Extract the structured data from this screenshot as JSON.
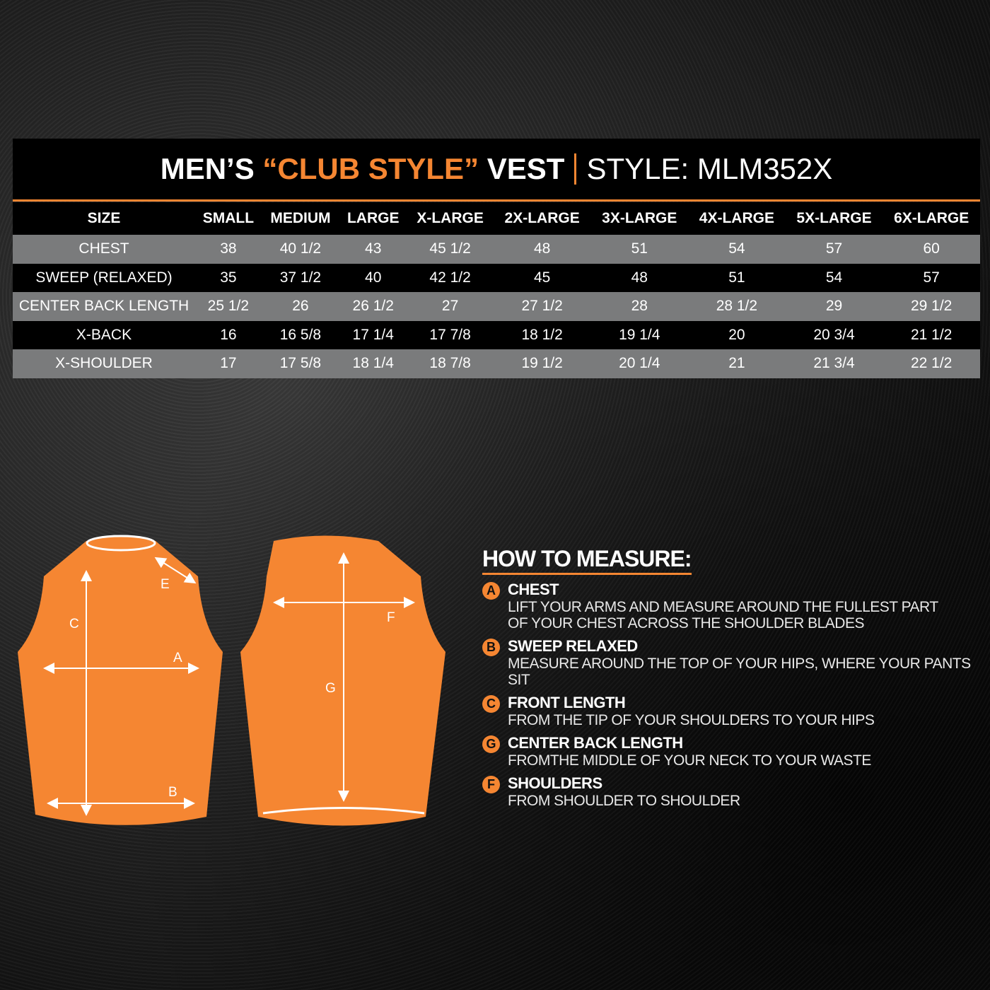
{
  "title": {
    "prefix": "MEN’S",
    "highlight": "“CLUB STYLE”",
    "product": "VEST",
    "style_label": "STYLE:",
    "style_code": "MLM352X"
  },
  "colors": {
    "accent": "#f58632",
    "row_grey": "#7a7b7c"
  },
  "table": {
    "headers": [
      "SIZE",
      "SMALL",
      "MEDIUM",
      "LARGE",
      "X-LARGE",
      "2X-LARGE",
      "3X-LARGE",
      "4X-LARGE",
      "5X-LARGE",
      "6X-LARGE"
    ],
    "rows": [
      [
        "CHEST",
        "38",
        "40 1/2",
        "43",
        "45 1/2",
        "48",
        "51",
        "54",
        "57",
        "60"
      ],
      [
        "SWEEP (RELAXED)",
        "35",
        "37 1/2",
        "40",
        "42 1/2",
        "45",
        "48",
        "51",
        "54",
        "57"
      ],
      [
        "CENTER BACK LENGTH",
        "25 1/2",
        "26",
        "26 1/2",
        "27",
        "27 1/2",
        "28",
        "28 1/2",
        "29",
        "29 1/2"
      ],
      [
        "X-BACK",
        "16",
        "16 5/8",
        "17 1/4",
        "17 7/8",
        "18 1/2",
        "19 1/4",
        "20",
        "20 3/4",
        "21 1/2"
      ],
      [
        "X-SHOULDER",
        "17",
        "17 5/8",
        "18 1/4",
        "18 7/8",
        "19 1/2",
        "20 1/4",
        "21",
        "21 3/4",
        "22 1/2"
      ]
    ]
  },
  "diagram": {
    "front_labels": [
      "E",
      "C",
      "A",
      "B"
    ],
    "back_labels": [
      "F",
      "G"
    ]
  },
  "howto": {
    "title": "HOW TO MEASURE:",
    "items": [
      {
        "letter": "A",
        "heading": "CHEST",
        "desc": [
          "LIFT YOUR ARMS AND MEASURE AROUND THE FULLEST PART",
          "OF YOUR CHEST ACROSS THE SHOULDER BLADES"
        ]
      },
      {
        "letter": "B",
        "heading": "SWEEP RELAXED",
        "desc": [
          "MEASURE AROUND THE TOP OF YOUR HIPS, WHERE YOUR PANTS SIT"
        ]
      },
      {
        "letter": "C",
        "heading": "FRONT LENGTH",
        "desc": [
          "FROM THE TIP OF YOUR SHOULDERS TO YOUR HIPS"
        ]
      },
      {
        "letter": "G",
        "heading": "CENTER BACK LENGTH",
        "desc": [
          "FROMTHE MIDDLE OF YOUR NECK TO YOUR WASTE"
        ]
      },
      {
        "letter": "F",
        "heading": "SHOULDERS",
        "desc": [
          "FROM SHOULDER TO SHOULDER"
        ]
      }
    ]
  }
}
